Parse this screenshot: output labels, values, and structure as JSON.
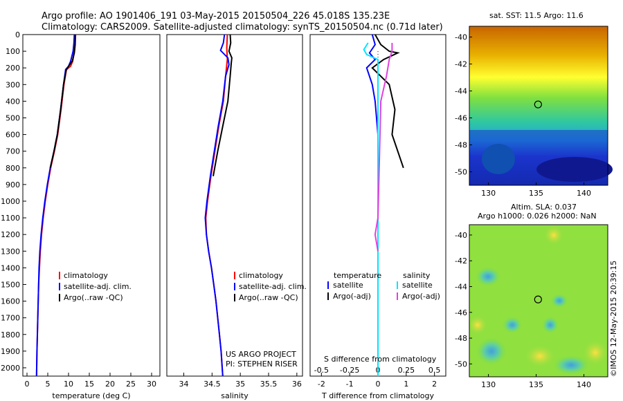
{
  "header": {
    "line1": "Argo profile: AO 1901406_191 03-May-2015 20150504_226 45.018S 135.23E",
    "line2": "Climatology: CARS2009. Satellite-adjusted climatology: synTS_20150504.nc (0.71d later)"
  },
  "stamp": "©IMOS 12-May-2015 20:39:15",
  "colors": {
    "climatology": "#ff0000",
    "satellite": "#0000ff",
    "argo": "#000000",
    "sat_salinity": "#00e5ff",
    "argo_salinity": "#e040e0"
  },
  "depth_axis": {
    "ticks": [
      0,
      100,
      200,
      300,
      400,
      500,
      600,
      700,
      800,
      900,
      1000,
      1100,
      1200,
      1300,
      1400,
      1500,
      1600,
      1700,
      1800,
      1900,
      2000
    ],
    "range": [
      0,
      2050
    ]
  },
  "chart_data": [
    {
      "type": "line",
      "xlabel": "temperature (deg C)",
      "xlim": [
        -1,
        32
      ],
      "xticks": [
        0,
        5,
        10,
        15,
        20,
        25,
        30
      ],
      "legend": [
        "climatology",
        "satellite-adj. clim.",
        "Argo(..raw -QC)"
      ],
      "series": [
        {
          "name": "climatology",
          "color": "#ff0000",
          "points": [
            [
              11.7,
              0
            ],
            [
              11.6,
              50
            ],
            [
              11.4,
              100
            ],
            [
              11.0,
              160
            ],
            [
              10.5,
              190
            ],
            [
              9.5,
              210
            ],
            [
              8.9,
              300
            ],
            [
              8.2,
              450
            ],
            [
              7.4,
              600
            ],
            [
              6.6,
              700
            ],
            [
              5.7,
              800
            ],
            [
              5.0,
              900
            ],
            [
              4.4,
              1000
            ],
            [
              3.9,
              1100
            ],
            [
              3.5,
              1200
            ],
            [
              3.2,
              1300
            ],
            [
              3.0,
              1400
            ],
            [
              2.8,
              1500
            ],
            [
              2.7,
              1600
            ],
            [
              2.6,
              1700
            ],
            [
              2.5,
              1800
            ],
            [
              2.4,
              1900
            ],
            [
              2.3,
              2050
            ]
          ]
        },
        {
          "name": "satellite-adj. clim.",
          "color": "#0000ff",
          "points": [
            [
              11.4,
              0
            ],
            [
              11.3,
              50
            ],
            [
              11.1,
              100
            ],
            [
              10.5,
              160
            ],
            [
              10.0,
              190
            ],
            [
              9.3,
              210
            ],
            [
              8.8,
              300
            ],
            [
              8.1,
              450
            ],
            [
              7.3,
              600
            ],
            [
              6.5,
              700
            ],
            [
              5.6,
              800
            ],
            [
              4.9,
              900
            ],
            [
              4.3,
              1000
            ],
            [
              3.8,
              1100
            ],
            [
              3.4,
              1200
            ],
            [
              3.1,
              1300
            ],
            [
              2.9,
              1400
            ],
            [
              2.8,
              1500
            ],
            [
              2.7,
              1600
            ],
            [
              2.6,
              1700
            ],
            [
              2.5,
              1800
            ],
            [
              2.4,
              1900
            ],
            [
              2.3,
              2050
            ]
          ]
        },
        {
          "name": "Argo(..raw -QC)",
          "color": "#000000",
          "points": [
            [
              11.6,
              0
            ],
            [
              11.6,
              60
            ],
            [
              11.4,
              110
            ],
            [
              10.9,
              160
            ],
            [
              10.0,
              190
            ],
            [
              9.4,
              215
            ],
            [
              8.8,
              300
            ],
            [
              8.1,
              450
            ],
            [
              7.3,
              600
            ],
            [
              6.5,
              700
            ],
            [
              5.6,
              800
            ]
          ]
        }
      ]
    },
    {
      "type": "line",
      "xlabel": "salinity",
      "xlim": [
        33.7,
        36.1
      ],
      "xticks": [
        34,
        34.5,
        35,
        35.5,
        36
      ],
      "legend": [
        "climatology",
        "satellite-adj. clim.",
        "Argo(..raw -QC)"
      ],
      "annotation": [
        "US ARGO PROJECT",
        "PI: STEPHEN RISER"
      ],
      "series": [
        {
          "name": "climatology",
          "color": "#ff0000",
          "points": [
            [
              34.77,
              0
            ],
            [
              34.76,
              80
            ],
            [
              34.77,
              150
            ],
            [
              34.74,
              250
            ],
            [
              34.7,
              400
            ],
            [
              34.62,
              550
            ],
            [
              34.55,
              700
            ],
            [
              34.48,
              850
            ],
            [
              34.42,
              1000
            ],
            [
              34.39,
              1100
            ],
            [
              34.4,
              1200
            ],
            [
              34.44,
              1300
            ],
            [
              34.49,
              1400
            ],
            [
              34.53,
              1500
            ],
            [
              34.57,
              1600
            ],
            [
              34.6,
              1700
            ],
            [
              34.63,
              1800
            ],
            [
              34.66,
              1900
            ],
            [
              34.69,
              2050
            ]
          ]
        },
        {
          "name": "satellite-adj. clim.",
          "color": "#0000ff",
          "points": [
            [
              34.72,
              0
            ],
            [
              34.7,
              50
            ],
            [
              34.65,
              95
            ],
            [
              34.78,
              140
            ],
            [
              34.8,
              180
            ],
            [
              34.74,
              250
            ],
            [
              34.69,
              400
            ],
            [
              34.61,
              550
            ],
            [
              34.54,
              700
            ],
            [
              34.47,
              850
            ],
            [
              34.41,
              1000
            ],
            [
              34.38,
              1100
            ],
            [
              34.4,
              1200
            ],
            [
              34.44,
              1300
            ],
            [
              34.49,
              1400
            ],
            [
              34.53,
              1500
            ],
            [
              34.57,
              1600
            ],
            [
              34.6,
              1700
            ],
            [
              34.63,
              1800
            ],
            [
              34.66,
              1900
            ],
            [
              34.69,
              2050
            ]
          ]
        },
        {
          "name": "Argo(..raw -QC)",
          "color": "#000000",
          "points": [
            [
              34.82,
              0
            ],
            [
              34.83,
              50
            ],
            [
              34.8,
              100
            ],
            [
              34.85,
              140
            ],
            [
              34.84,
              170
            ],
            [
              34.82,
              250
            ],
            [
              34.78,
              400
            ],
            [
              34.69,
              550
            ],
            [
              34.6,
              700
            ],
            [
              34.52,
              850
            ]
          ]
        }
      ]
    },
    {
      "type": "line",
      "xlabel": "T difference from climatology",
      "xlabel_top": "S difference from climatology",
      "xlim": [
        -2.4,
        2.4
      ],
      "xticks": [
        -2,
        -1,
        0,
        1,
        2
      ],
      "xticks_top": [
        -0.5,
        -0.25,
        0,
        0.25,
        0.5
      ],
      "legend_temperature": [
        "temperature",
        "satellite",
        "Argo(-adj)"
      ],
      "legend_salinity": [
        "salinity",
        "satellite",
        "Argo(-adj)"
      ],
      "series": [
        {
          "name": "temperature satellite",
          "color": "#0000ff",
          "points": [
            [
              -0.2,
              0
            ],
            [
              -0.1,
              60
            ],
            [
              -0.3,
              110
            ],
            [
              -0.1,
              150
            ],
            [
              -0.4,
              200
            ],
            [
              -0.2,
              300
            ],
            [
              -0.1,
              400
            ],
            [
              0,
              600
            ],
            [
              0,
              2050
            ]
          ]
        },
        {
          "name": "temperature Argo(-adj)",
          "color": "#000000",
          "points": [
            [
              -0.1,
              0
            ],
            [
              0.1,
              60
            ],
            [
              0.4,
              100
            ],
            [
              0.7,
              110
            ],
            [
              0.2,
              150
            ],
            [
              -0.2,
              200
            ],
            [
              0.4,
              300
            ],
            [
              0.6,
              450
            ],
            [
              0.5,
              600
            ],
            [
              0.7,
              700
            ],
            [
              0.9,
              800
            ]
          ]
        },
        {
          "name": "salinity satellite",
          "color": "#00e5ff",
          "points": [
            [
              -0.35,
              50
            ],
            [
              -0.5,
              90
            ],
            [
              -0.4,
              120
            ],
            [
              0,
              150
            ],
            [
              0,
              2050
            ]
          ]
        },
        {
          "name": "salinity Argo(-adj)",
          "color": "#e040e0",
          "points": [
            [
              0.5,
              50
            ],
            [
              0.5,
              100
            ],
            [
              0.4,
              150
            ],
            [
              0.3,
              250
            ],
            [
              0.1,
              400
            ],
            [
              0,
              1100
            ],
            [
              -0.1,
              1200
            ],
            [
              0,
              1300
            ]
          ]
        }
      ]
    }
  ],
  "maps": [
    {
      "title": "sat. SST: 11.5 Argo: 11.6",
      "xticks": [
        130,
        135,
        140
      ],
      "yticks": [
        -40,
        -42,
        -44,
        -46,
        -48,
        -50
      ],
      "xlim": [
        128,
        142.5
      ],
      "ylim": [
        -51,
        -39.2
      ],
      "marker": [
        135.2,
        -45.0
      ]
    },
    {
      "title": "Altim. SLA: 0.037",
      "subtitle": "Argo h1000: 0.026 h2000: NaN",
      "xticks": [
        130,
        135,
        140
      ],
      "yticks": [
        -40,
        -42,
        -44,
        -46,
        -48,
        -50
      ],
      "xlim": [
        128,
        142.5
      ],
      "ylim": [
        -51,
        -39.2
      ],
      "marker": [
        135.2,
        -45.0
      ]
    }
  ]
}
